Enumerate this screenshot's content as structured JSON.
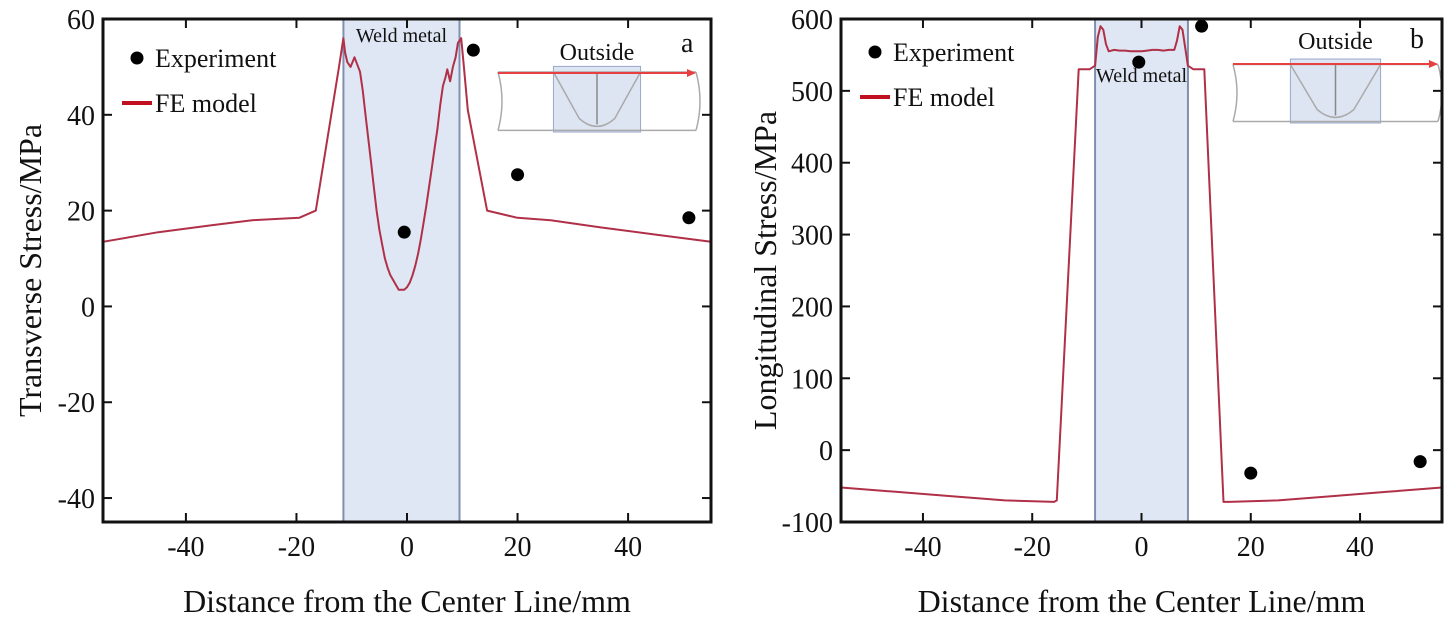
{
  "chart_data": [
    {
      "type": "line",
      "panel_letter": "a",
      "xlabel": "Distance from the Center Line/mm",
      "ylabel": "Transverse Stress/MPa",
      "xlim": [
        -55,
        55
      ],
      "ylim": [
        -45,
        60
      ],
      "xticks": [
        -40,
        -20,
        0,
        20,
        40
      ],
      "yticks": [
        60,
        40,
        20,
        0,
        -20,
        -40
      ],
      "tick_labels_x": [
        "-40",
        "-20",
        "0",
        "20",
        "40"
      ],
      "tick_labels_y": [
        "60",
        "40",
        "20",
        "0",
        "-20",
        "-40"
      ],
      "legend": {
        "placement": "top-left",
        "entries": [
          "Experiment",
          "FE model"
        ]
      },
      "weld_region": {
        "label": "Weld metal",
        "x_range": [
          -11.5,
          9.5
        ]
      },
      "inset_label": "Outside",
      "colors": {
        "fe_line": "#b03048",
        "weld_fill": "#d6dff0",
        "weld_edge": "#7f8fb0",
        "points": "#000000",
        "arrow": "#e84040"
      },
      "series": [
        {
          "name": "Experiment",
          "kind": "scatter",
          "x": [
            -0.5,
            12,
            20,
            51
          ],
          "y": [
            15.5,
            53.5,
            27.5,
            18.5
          ]
        },
        {
          "name": "FE model",
          "kind": "line",
          "x": [
            -55,
            -45,
            -35,
            -28,
            -19.5,
            -16.5,
            -12.3,
            -11.5,
            -11.2,
            -10.8,
            -10.2,
            -9.5,
            -8.5,
            -8,
            -7.5,
            -7,
            -6.5,
            -6,
            -5.5,
            -5,
            -4.5,
            -4,
            -3.5,
            -3,
            -2.5,
            -2,
            -1.5,
            -1,
            -0.5,
            0,
            0.5,
            1,
            1.5,
            2,
            2.5,
            3,
            3.5,
            4,
            4.5,
            5,
            5.5,
            6,
            6.5,
            7,
            7.3,
            7.8,
            8.3,
            8.8,
            9.2,
            9.8,
            10.3,
            11,
            14.5,
            20,
            26,
            35,
            45,
            55
          ],
          "y": [
            13.5,
            15.5,
            17,
            18,
            18.5,
            20,
            50,
            56,
            53,
            51,
            50,
            52,
            49,
            45,
            40,
            35,
            30,
            25,
            20,
            16,
            13,
            10,
            8,
            6.5,
            5.5,
            4.5,
            3.5,
            3.5,
            3.5,
            4,
            5,
            6.5,
            8.5,
            11,
            14,
            17.5,
            21,
            25,
            29,
            33,
            37,
            42,
            46,
            48,
            49.5,
            47,
            50,
            52,
            55,
            56,
            50,
            41,
            20,
            18.5,
            18,
            16.5,
            15,
            13.5
          ]
        }
      ]
    },
    {
      "type": "line",
      "panel_letter": "b",
      "xlabel": "Distance from the Center Line/mm",
      "ylabel": "Longitudinal Stress/MPa",
      "xlim": [
        -55,
        55
      ],
      "ylim": [
        -100,
        600
      ],
      "xticks": [
        -40,
        -20,
        0,
        20,
        40
      ],
      "yticks": [
        600,
        500,
        400,
        300,
        200,
        100,
        0,
        -100
      ],
      "tick_labels_x": [
        "-40",
        "-20",
        "0",
        "20",
        "40"
      ],
      "tick_labels_y": [
        "600",
        "500",
        "400",
        "300",
        "200",
        "100",
        "0",
        "-100"
      ],
      "legend": {
        "placement": "top-left",
        "entries": [
          "Experiment",
          "FE model"
        ]
      },
      "weld_region": {
        "label": "Weld metal",
        "x_range": [
          -8.5,
          8.5
        ]
      },
      "inset_label": "Outside",
      "colors": {
        "fe_line": "#b03048",
        "weld_fill": "#d6dff0",
        "weld_edge": "#7f8fb0",
        "points": "#000000",
        "arrow": "#e84040"
      },
      "series": [
        {
          "name": "Experiment",
          "kind": "scatter",
          "x": [
            -0.5,
            11,
            20,
            51
          ],
          "y": [
            540,
            590,
            -32,
            -16
          ]
        },
        {
          "name": "FE model",
          "kind": "line",
          "x": [
            -55,
            -45,
            -35,
            -25,
            -16,
            -15.5,
            -11.5,
            -9.5,
            -8.5,
            -8,
            -7.5,
            -7,
            -6.5,
            -6,
            -5,
            -4,
            -3,
            -2,
            -1,
            0,
            1,
            2,
            3,
            4,
            5,
            6,
            6.5,
            7,
            7.5,
            8,
            8.5,
            9.5,
            11.5,
            15,
            16,
            25,
            35,
            45,
            55
          ],
          "y": [
            -52,
            -58,
            -64,
            -70,
            -72,
            -70,
            530,
            530,
            535,
            575,
            590,
            585,
            565,
            555,
            557,
            556,
            556,
            555,
            555,
            555,
            556,
            557,
            557,
            556,
            557,
            557,
            570,
            590,
            585,
            560,
            535,
            530,
            530,
            -72,
            -72,
            -70,
            -64,
            -58,
            -52
          ]
        }
      ]
    }
  ]
}
